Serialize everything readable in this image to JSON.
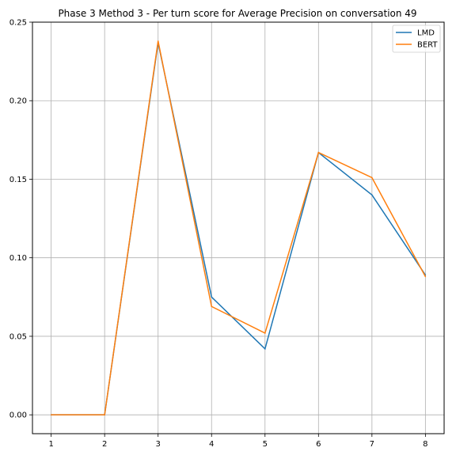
{
  "chart_data": {
    "type": "line",
    "title": "Phase 3 Method 3 - Per turn score for Average Precision on conversation 49",
    "xlabel": "",
    "ylabel": "",
    "x": [
      1,
      2,
      3,
      4,
      5,
      6,
      7,
      8
    ],
    "x_ticks": [
      "1",
      "2",
      "3",
      "4",
      "5",
      "6",
      "7",
      "8"
    ],
    "y_ticks": [
      "0.00",
      "0.05",
      "0.10",
      "0.15",
      "0.20",
      "0.25"
    ],
    "xlim": [
      0.65,
      8.35
    ],
    "ylim": [
      -0.012,
      0.25
    ],
    "grid": true,
    "legend_position": "top-right",
    "series": [
      {
        "name": "LMD",
        "color": "#1f77b4",
        "values": [
          0.0,
          0.0,
          0.237,
          0.075,
          0.042,
          0.167,
          0.14,
          0.089
        ]
      },
      {
        "name": "BERT",
        "color": "#ff7f0e",
        "values": [
          0.0,
          0.0,
          0.238,
          0.069,
          0.052,
          0.167,
          0.151,
          0.088
        ]
      }
    ]
  }
}
